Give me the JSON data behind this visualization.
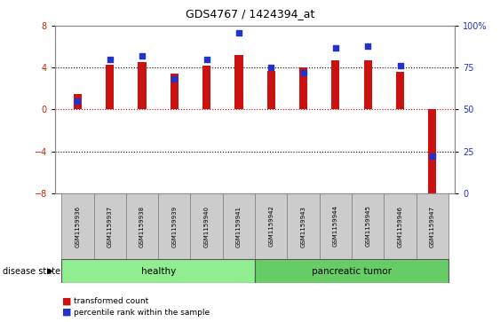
{
  "title": "GDS4767 / 1424394_at",
  "samples": [
    "GSM1159936",
    "GSM1159937",
    "GSM1159938",
    "GSM1159939",
    "GSM1159940",
    "GSM1159941",
    "GSM1159942",
    "GSM1159943",
    "GSM1159944",
    "GSM1159945",
    "GSM1159946",
    "GSM1159947"
  ],
  "transformed_count": [
    1.5,
    4.3,
    4.5,
    3.4,
    4.2,
    5.2,
    3.7,
    4.0,
    4.7,
    4.7,
    3.6,
    -8.8
  ],
  "percentile_rank": [
    55,
    80,
    82,
    68,
    80,
    96,
    75,
    72,
    87,
    88,
    76,
    22
  ],
  "ylim_left": [
    -8,
    8
  ],
  "ylim_right": [
    0,
    100
  ],
  "yticks_left": [
    -8,
    -4,
    0,
    4,
    8
  ],
  "yticks_right": [
    0,
    25,
    50,
    75,
    100
  ],
  "ytick_labels_right": [
    "0",
    "25",
    "50",
    "75",
    "100%"
  ],
  "bar_color": "#cc1111",
  "dot_color": "#2233cc",
  "dashed_zero_color": "#cc0000",
  "healthy_label": "healthy",
  "tumor_label": "pancreatic tumor",
  "disease_state_label": "disease state",
  "group_color_healthy": "#90EE90",
  "group_color_tumor": "#66CC66",
  "legend_bar_label": "transformed count",
  "legend_dot_label": "percentile rank within the sample",
  "background_color": "#ffffff",
  "plot_bg_color": "#ffffff",
  "tick_label_area_color": "#cccccc",
  "box_edge_color": "#888888",
  "bar_width": 0.25,
  "n_healthy": 6,
  "n_tumor": 6
}
